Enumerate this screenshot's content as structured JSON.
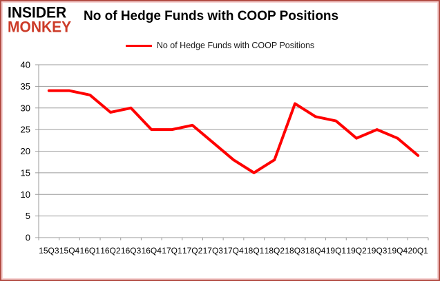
{
  "brand": {
    "line1": "INSIDER",
    "line2": "MONKEY"
  },
  "title": "No of Hedge Funds with COOP Positions",
  "legend": {
    "label": "No of Hedge Funds with COOP Positions"
  },
  "colors": {
    "line": "#ff0000",
    "brand_red": "#cc3b28",
    "grid": "#9b9b9b",
    "axis_text": "#000000"
  },
  "chart_data": {
    "type": "line",
    "title": "No of Hedge Funds with COOP Positions",
    "categories": [
      "15Q3",
      "15Q4",
      "16Q1",
      "16Q2",
      "16Q3",
      "16Q4",
      "17Q1",
      "17Q2",
      "17Q3",
      "17Q4",
      "18Q1",
      "18Q2",
      "18Q3",
      "18Q4",
      "19Q1",
      "19Q2",
      "19Q3",
      "19Q4",
      "20Q1"
    ],
    "series": [
      {
        "name": "No of Hedge Funds with COOP Positions",
        "values": [
          34,
          34,
          33,
          29,
          30,
          25,
          25,
          26,
          22,
          18,
          15,
          18,
          31,
          28,
          27,
          23,
          25,
          23,
          19
        ]
      }
    ],
    "xlabel": "",
    "ylabel": "",
    "ylim": [
      0,
      40
    ],
    "ytick_step": 5,
    "grid": true,
    "legend_position": "top-center"
  }
}
